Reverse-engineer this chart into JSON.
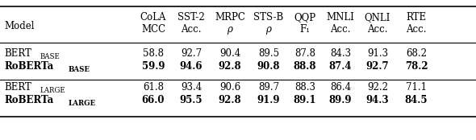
{
  "col_headers_line1": [
    "CoLA",
    "SST-2",
    "MRPC",
    "STS-B",
    "QQP",
    "MNLI",
    "QNLI",
    "RTE"
  ],
  "col_headers_line2": [
    "MCC",
    "Acc.",
    "ρ",
    "ρ",
    "F₁",
    "Acc.",
    "Acc.",
    "Acc."
  ],
  "row_label_col": "Model",
  "rows": [
    {
      "model": "BERT",
      "sub": "BASE",
      "values": [
        "58.8",
        "92.7",
        "90.4",
        "89.5",
        "87.8",
        "84.3",
        "91.3",
        "68.2"
      ],
      "bold": false
    },
    {
      "model": "RoBERTa",
      "sub": "BASE",
      "values": [
        "59.9",
        "94.6",
        "92.8",
        "90.8",
        "88.8",
        "87.4",
        "92.7",
        "78.2"
      ],
      "bold": true
    },
    {
      "model": "BERT",
      "sub": "LARGE",
      "values": [
        "61.8",
        "93.4",
        "90.6",
        "89.7",
        "88.3",
        "86.4",
        "92.2",
        "71.1"
      ],
      "bold": false
    },
    {
      "model": "RoBERTa",
      "sub": "LARGE",
      "values": [
        "66.0",
        "95.5",
        "92.8",
        "91.9",
        "89.1",
        "89.9",
        "94.3",
        "84.5"
      ],
      "bold": true
    }
  ],
  "background_color": "#ffffff",
  "font_size": 8.5,
  "sub_font_size": 6.2,
  "header_font_size": 8.5
}
